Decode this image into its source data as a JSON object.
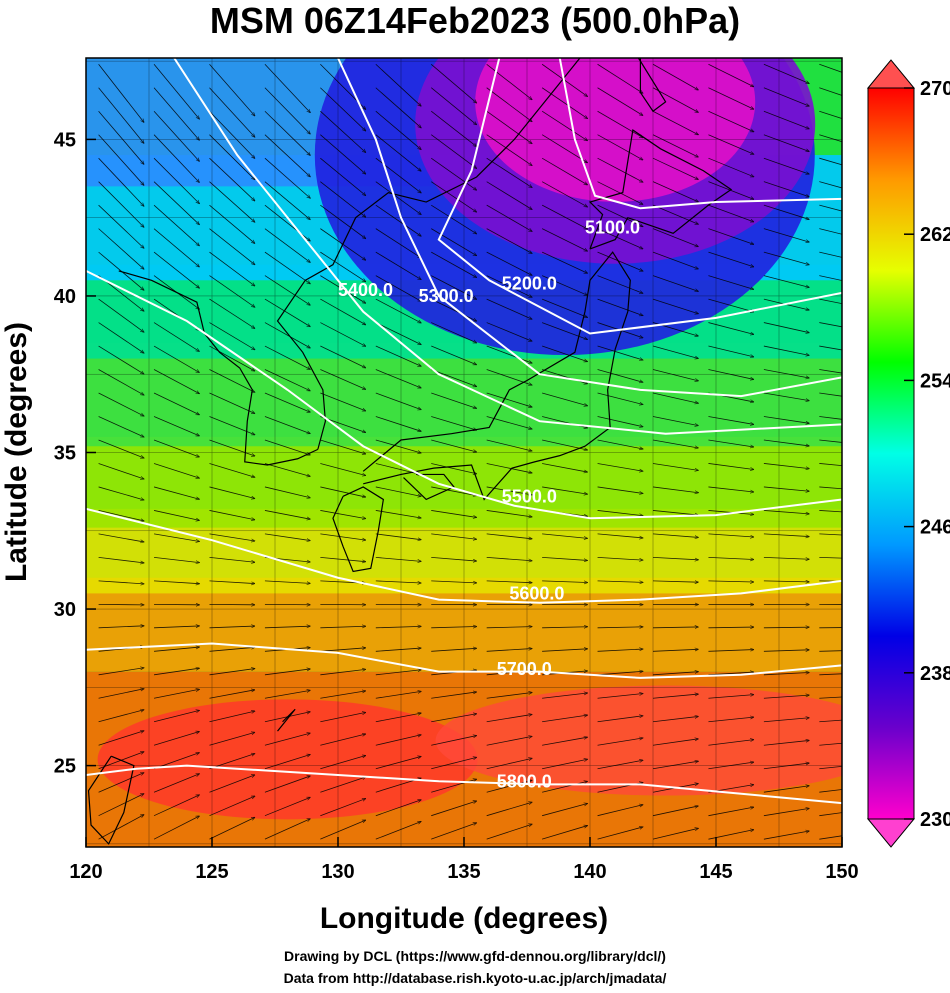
{
  "title": "MSM 06Z14Feb2023 (500.0hPa)",
  "credits": {
    "line1": "Drawing by DCL (https://www.gfd-dennou.org/library/dcl/)",
    "line2": "Data from http://database.rish.kyoto-u.ac.jp/arch/jmadata/"
  },
  "map": {
    "xlabel": "Longitude (degrees)",
    "ylabel": "Latitude  (degrees)",
    "lon_range": [
      120,
      150
    ],
    "lat_range": [
      22.4,
      47.6
    ],
    "lon_ticks": [
      "120",
      "125",
      "130",
      "135",
      "140",
      "145",
      "150"
    ],
    "lat_ticks": [
      "25",
      "30",
      "35",
      "40",
      "45"
    ],
    "grid": true,
    "colorbar": {
      "min": 230,
      "max": 270,
      "tick_values": [
        "230",
        "238",
        "246",
        "254",
        "262",
        "270"
      ],
      "colors": [
        "#ff00cc",
        "#6a00cc",
        "#0000e6",
        "#0099ff",
        "#00ffe6",
        "#00ff00",
        "#e6ff00",
        "#ff9900",
        "#ff0000"
      ]
    },
    "contours": [
      {
        "label": "5100.0",
        "label_lon": 139.8,
        "label_lat": 42.0,
        "points": [
          [
            138.8,
            47.6
          ],
          [
            139.4,
            45.0
          ],
          [
            140.2,
            43.2
          ],
          [
            142,
            42.8
          ],
          [
            145,
            43
          ],
          [
            150,
            43.1
          ]
        ]
      },
      {
        "label": "5200.0",
        "label_lon": 136.5,
        "label_lat": 40.2,
        "points": [
          [
            136.4,
            47.6
          ],
          [
            135.3,
            44
          ],
          [
            134,
            41.8
          ],
          [
            136,
            40.5
          ],
          [
            140,
            38.8
          ],
          [
            145,
            39.3
          ],
          [
            150,
            40.1
          ]
        ]
      },
      {
        "label": "5300.0",
        "label_lon": 133.2,
        "label_lat": 39.8,
        "points": [
          [
            130,
            47.6
          ],
          [
            131.5,
            45
          ],
          [
            132.5,
            42.5
          ],
          [
            134,
            40
          ],
          [
            138,
            37.5
          ],
          [
            142,
            37
          ],
          [
            146,
            36.8
          ],
          [
            150,
            37.4
          ]
        ]
      },
      {
        "label": "5400.0",
        "label_lon": 130.0,
        "label_lat": 40.0,
        "points": [
          [
            123.5,
            47.6
          ],
          [
            126,
            44.5
          ],
          [
            128.5,
            42
          ],
          [
            131,
            39.5
          ],
          [
            134,
            37.5
          ],
          [
            138,
            36
          ],
          [
            143,
            35.6
          ],
          [
            150,
            35.9
          ]
        ]
      },
      {
        "label": "5500.0",
        "label_lon": 136.5,
        "label_lat": 33.4,
        "points": [
          [
            120,
            40.8
          ],
          [
            124,
            39.2
          ],
          [
            128,
            37
          ],
          [
            131,
            35.2
          ],
          [
            134,
            34
          ],
          [
            137,
            33.3
          ],
          [
            140,
            32.9
          ],
          [
            145,
            33
          ],
          [
            150,
            33.5
          ]
        ]
      },
      {
        "label": "5600.0",
        "label_lon": 136.8,
        "label_lat": 30.3,
        "points": [
          [
            120,
            33.2
          ],
          [
            125,
            32.2
          ],
          [
            130,
            31
          ],
          [
            134,
            30.3
          ],
          [
            138,
            30.2
          ],
          [
            142,
            30.3
          ],
          [
            146,
            30.5
          ],
          [
            150,
            30.9
          ]
        ]
      },
      {
        "label": "5700.0",
        "label_lon": 136.3,
        "label_lat": 27.9,
        "points": [
          [
            120,
            28.7
          ],
          [
            125,
            28.9
          ],
          [
            130,
            28.6
          ],
          [
            134,
            28
          ],
          [
            138,
            28
          ],
          [
            142,
            27.8
          ],
          [
            146,
            27.9
          ],
          [
            150,
            28.2
          ]
        ]
      },
      {
        "label": "5800.0",
        "label_lon": 136.3,
        "label_lat": 24.3,
        "points": [
          [
            120,
            24.7
          ],
          [
            122,
            24.9
          ],
          [
            124,
            25.0
          ],
          [
            130,
            24.7
          ],
          [
            134,
            24.5
          ],
          [
            138,
            24.4
          ],
          [
            142,
            24.4
          ],
          [
            146,
            24.1
          ],
          [
            150,
            23.8
          ]
        ]
      }
    ]
  }
}
